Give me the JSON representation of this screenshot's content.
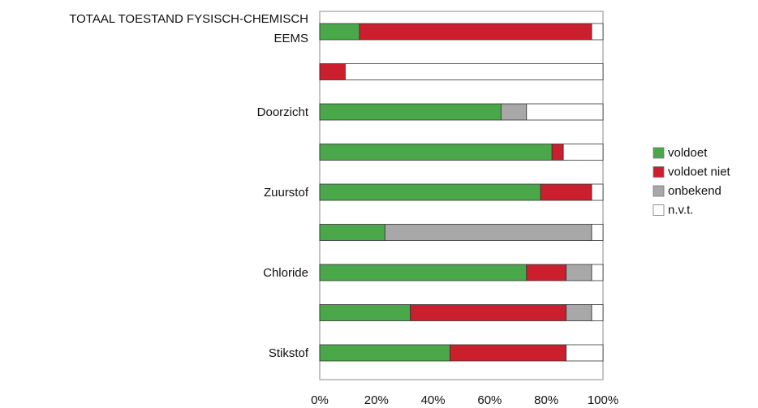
{
  "chart_data": {
    "type": "bar",
    "orientation": "horizontal",
    "stacked": "percent",
    "categories": [
      [
        "TOTAAL TOESTAND FYSISCH-CHEMISCH",
        "EEMS"
      ],
      [
        ""
      ],
      [
        "Doorzicht"
      ],
      [
        ""
      ],
      [
        "Zuurstof"
      ],
      [
        ""
      ],
      [
        "Chloride"
      ],
      [
        ""
      ],
      [
        "Stikstof"
      ]
    ],
    "series": [
      {
        "name": "voldoet",
        "color": "#4aa84a",
        "values": [
          14,
          0,
          64,
          82,
          78,
          23,
          73,
          32,
          46
        ]
      },
      {
        "name": "voldoet niet",
        "color": "#cc1f2e",
        "values": [
          82,
          9,
          0,
          4,
          18,
          0,
          14,
          55,
          41
        ]
      },
      {
        "name": "onbekend",
        "color": "#a8a8a8",
        "values": [
          0,
          0,
          9,
          0,
          0,
          73,
          9,
          9,
          0
        ]
      },
      {
        "name": "n.v.t.",
        "color": "#ffffff",
        "values": [
          4,
          91,
          27,
          14,
          4,
          4,
          4,
          4,
          13
        ]
      }
    ],
    "xlim": [
      0,
      100
    ],
    "xticks": [
      "0%",
      "20%",
      "40%",
      "60%",
      "80%",
      "100%"
    ],
    "xtick_values": [
      0,
      20,
      40,
      60,
      80,
      100
    ],
    "grid": false,
    "legend_position": "right"
  }
}
